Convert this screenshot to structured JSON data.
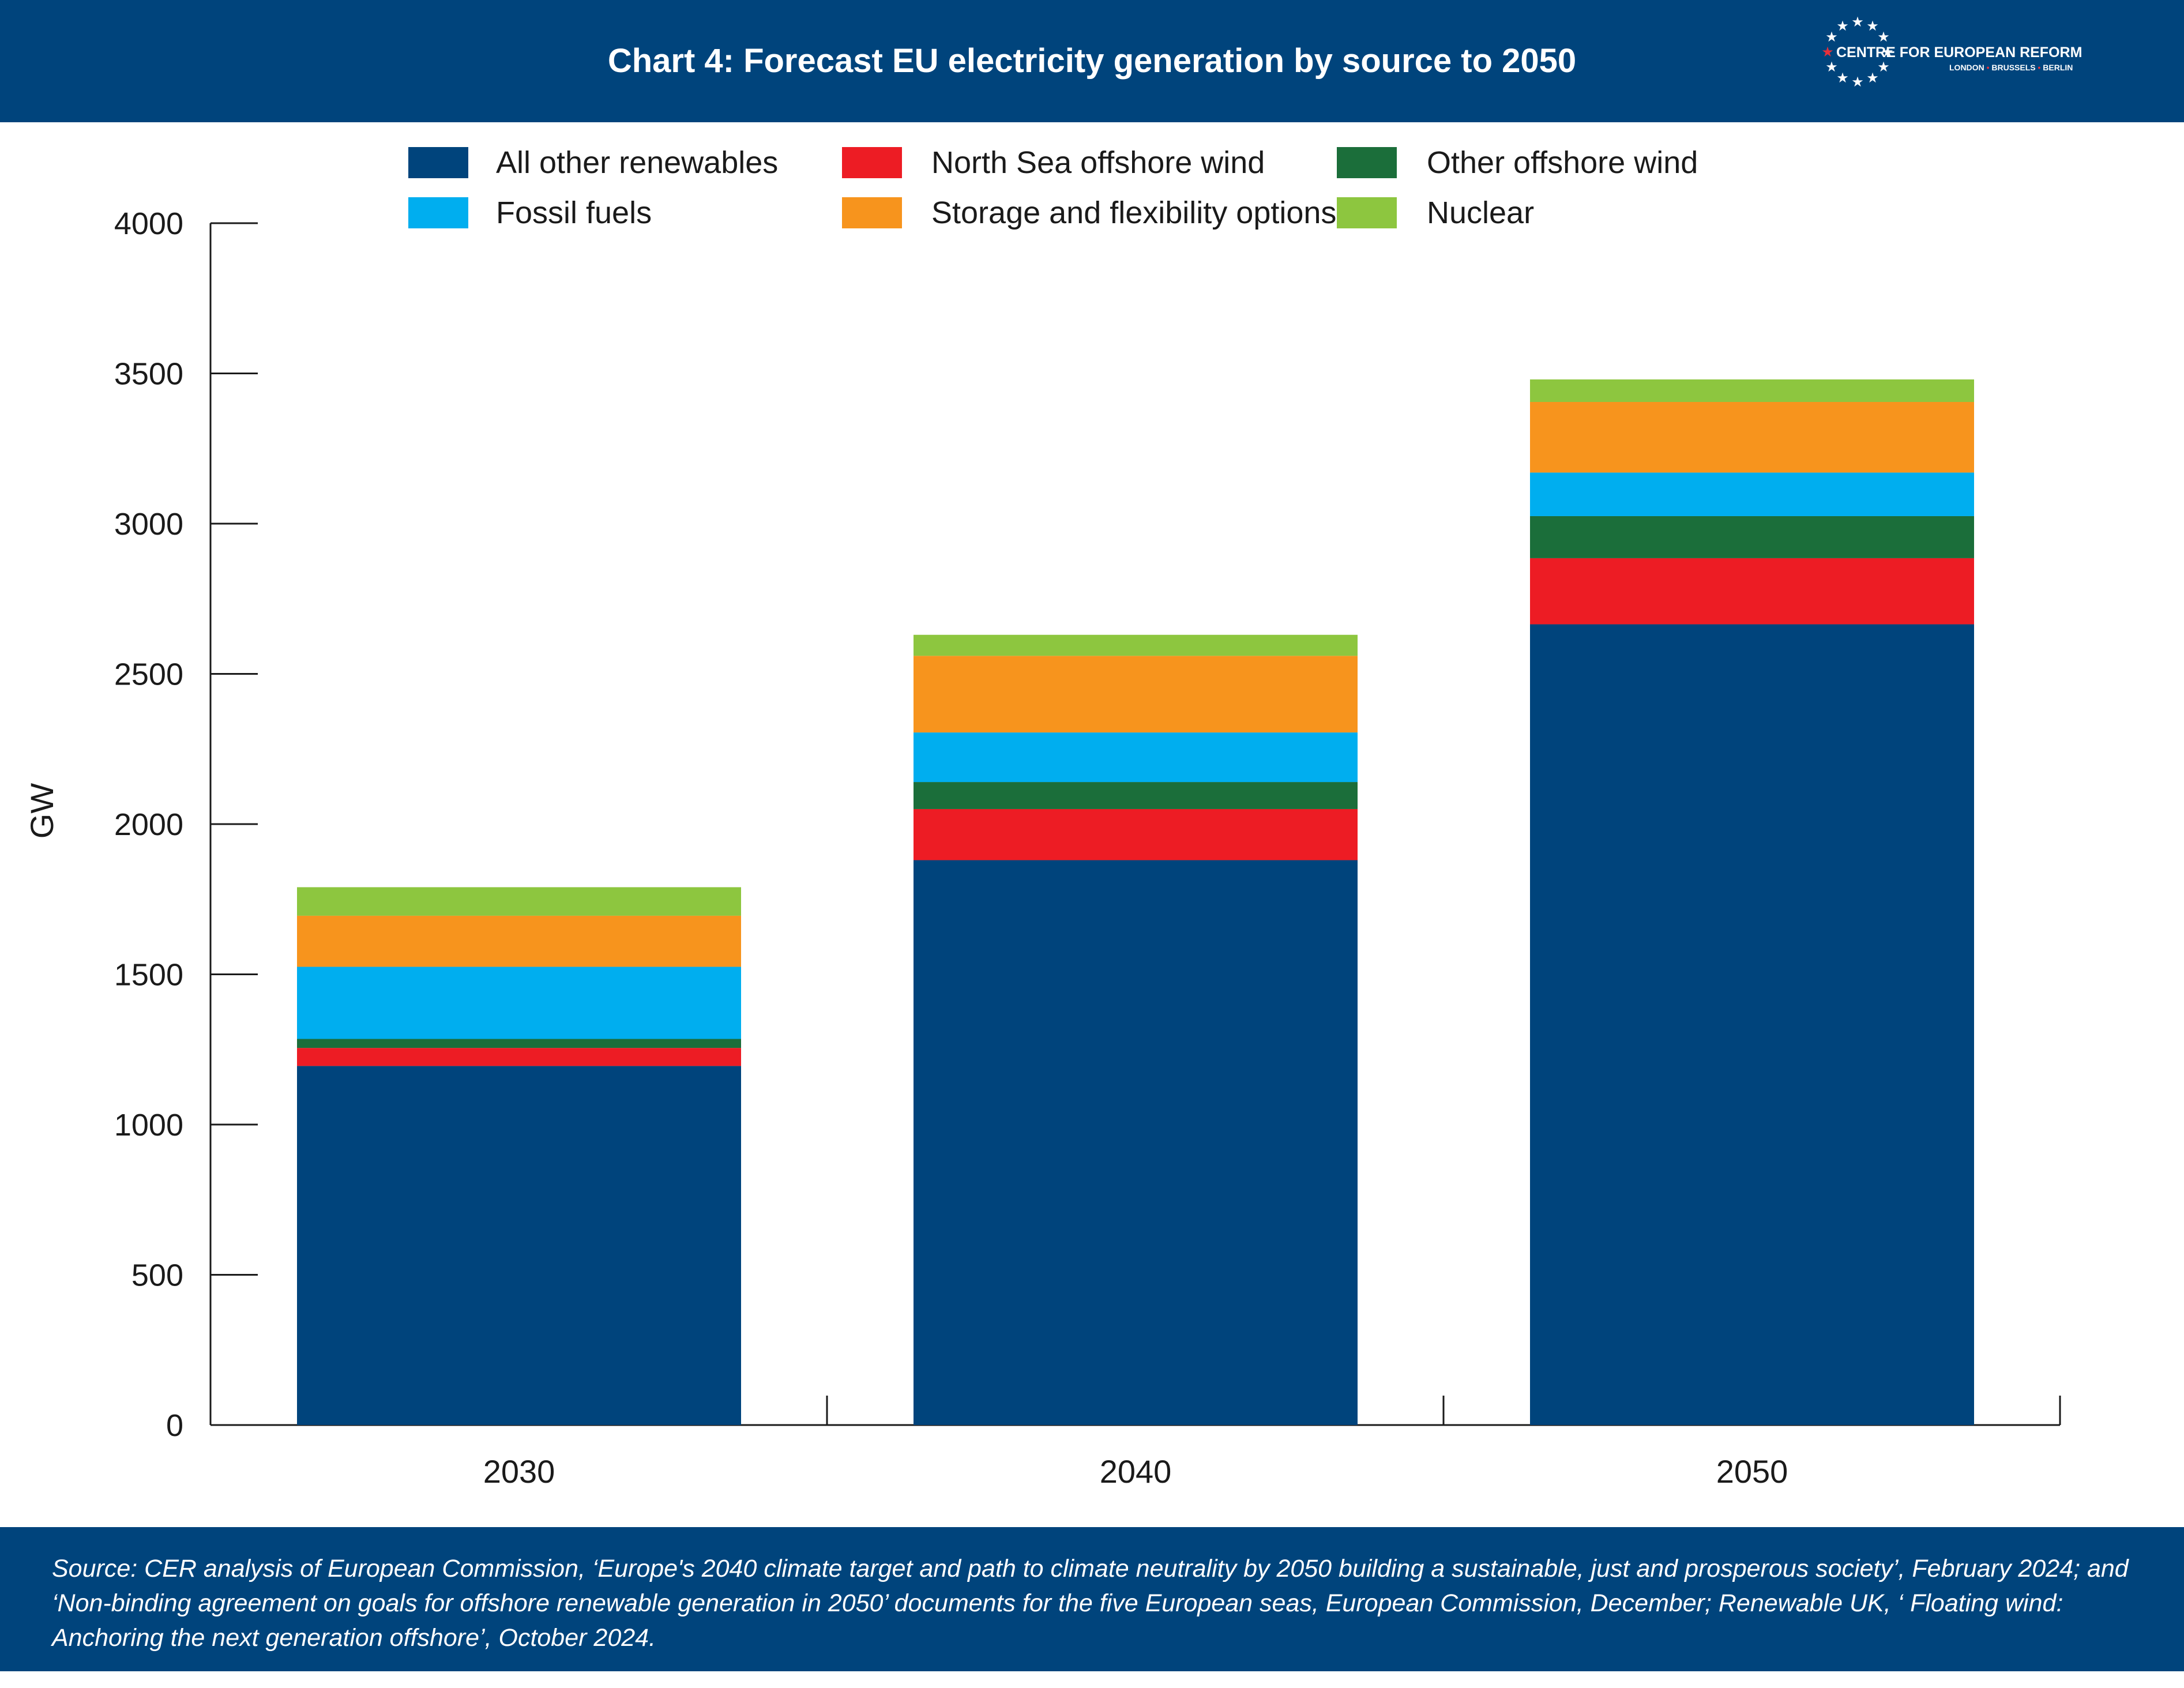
{
  "header": {
    "title": "Chart 4: Forecast EU electricity generation by source to 2050",
    "logo": {
      "name": "CENTRE FOR EUROPEAN REFORM",
      "cities": [
        "LONDON",
        "BRUSSELS",
        "BERLIN"
      ],
      "icon": "ring-of-stars-icon"
    }
  },
  "chart_data": {
    "type": "bar",
    "stacked": true,
    "categories": [
      "2030",
      "2040",
      "2050"
    ],
    "series": [
      {
        "name": "All other renewables",
        "color": "#00447c",
        "values": [
          1195,
          1880,
          2665
        ]
      },
      {
        "name": "North Sea offshore wind",
        "color": "#ed1c24",
        "values": [
          60,
          170,
          220
        ]
      },
      {
        "name": "Other offshore wind",
        "color": "#1b6e3a",
        "values": [
          30,
          90,
          140
        ]
      },
      {
        "name": "Fossil fuels",
        "color": "#00aeef",
        "values": [
          240,
          165,
          145
        ]
      },
      {
        "name": "Storage and flexibility options",
        "color": "#f7941d",
        "values": [
          170,
          255,
          235
        ]
      },
      {
        "name": "Nuclear",
        "color": "#8dc63f",
        "values": [
          95,
          70,
          75
        ]
      }
    ],
    "title": "Chart 4: Forecast EU electricity generation by source to 2050",
    "xlabel": "",
    "ylabel": "GW",
    "ylim": [
      0,
      4000
    ],
    "yticks": [
      "0",
      "500",
      "1000",
      "1500",
      "2000",
      "2500",
      "3000",
      "3500",
      "4000"
    ],
    "legend": "top",
    "grid": false
  },
  "footer": {
    "source": "Source: CER analysis of European Commission, ‘Europe's 2040 climate target and path to climate neutrality by 2050 building a sustainable, just and prosperous society’, February 2024; and ‘Non-binding agreement on goals for offshore renewable generation in 2050’ documents for the five European seas, European Commission, December; Renewable UK, ‘ Floating wind: Anchoring the next generation offshore’, October 2024."
  }
}
